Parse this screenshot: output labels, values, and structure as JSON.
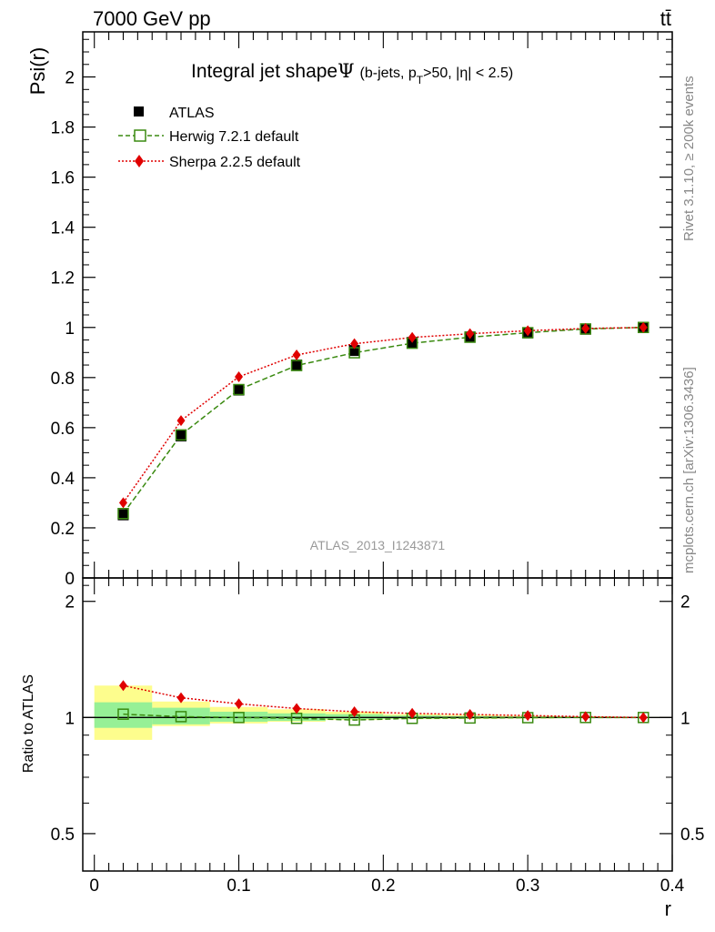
{
  "header": {
    "energy_label": "7000 GeV pp",
    "process_label": "tt̄"
  },
  "side_labels": {
    "rivet": "Rivet 3.1.10, ≥ 200k events",
    "mcplots": "mcplots.cern.ch [arXiv:1306.3436]"
  },
  "chart_data": {
    "type": "scatter",
    "title_main": "Integral jet shape",
    "title_symbol": "Ψ",
    "title_cut_a": "(b-jets, p",
    "title_cut_sub": "T",
    "title_cut_b": ">50, |η| < 2.5)",
    "watermark": "ATLAS_2013_I1243871",
    "upper": {
      "ylabel": "Psi(r)",
      "ylim": [
        0,
        2.18
      ],
      "yticks": [
        0,
        0.2,
        0.4,
        0.6,
        0.8,
        1,
        1.2,
        1.4,
        1.6,
        1.8,
        2
      ],
      "ytick_labels": [
        "0",
        "0.2",
        "0.4",
        "0.6",
        "0.8",
        "1",
        "1.2",
        "1.4",
        "1.6",
        "1.8",
        "2"
      ]
    },
    "lower": {
      "ylabel": "Ratio to ATLAS",
      "ylim": [
        0.4,
        2.3
      ],
      "yticks": [
        0.5,
        1,
        2
      ],
      "ytick_labels": [
        "0.5",
        "1",
        "2"
      ],
      "reference": 1.0,
      "band_edges": [
        0.0,
        0.04,
        0.08,
        0.12,
        0.16,
        0.2,
        0.24,
        0.28,
        0.32,
        0.36,
        0.4
      ],
      "band_green_lo": [
        0.94,
        0.96,
        0.975,
        0.98,
        0.99,
        0.993,
        0.995,
        0.997,
        0.999,
        0.999
      ],
      "band_green_hi": [
        1.095,
        1.06,
        1.035,
        1.025,
        1.02,
        1.012,
        1.008,
        1.005,
        1.003,
        1.002
      ],
      "band_yellow_lo": [
        0.875,
        0.95,
        0.965,
        0.975,
        0.985,
        0.99,
        0.992,
        0.994,
        0.997,
        0.999
      ],
      "band_yellow_hi": [
        1.21,
        1.1,
        1.065,
        1.05,
        1.035,
        1.02,
        1.015,
        1.01,
        1.006,
        1.003
      ]
    },
    "xlabel": "r",
    "xlim": [
      -0.008,
      0.4
    ],
    "xticks": [
      0,
      0.1,
      0.2,
      0.3,
      0.4
    ],
    "xtick_labels": [
      "0",
      "0.1",
      "0.2",
      "0.3",
      "0.4"
    ],
    "x": [
      0.02,
      0.06,
      0.1,
      0.14,
      0.18,
      0.22,
      0.26,
      0.3,
      0.34,
      0.38
    ],
    "series": [
      {
        "name": "ATLAS",
        "color": "#000000",
        "values": [
          0.252,
          0.567,
          0.75,
          0.85,
          0.908,
          0.94,
          0.962,
          0.978,
          0.993,
          1.0
        ],
        "ratio": [
          1,
          1,
          1,
          1,
          1,
          1,
          1,
          1,
          1,
          1
        ]
      },
      {
        "name": "Herwig 7.2.1 default",
        "color": "#3a8a10",
        "values": [
          0.257,
          0.571,
          0.752,
          0.848,
          0.899,
          0.937,
          0.961,
          0.979,
          0.994,
          1.0
        ],
        "ratio": [
          1.02,
          1.005,
          1.0,
          0.995,
          0.985,
          0.995,
          0.997,
          0.999,
          1.0,
          1.0
        ]
      },
      {
        "name": "Sherpa 2.2.5 default",
        "color": "#e00000",
        "values": [
          0.3,
          0.628,
          0.803,
          0.89,
          0.935,
          0.96,
          0.975,
          0.987,
          0.996,
          1.0
        ],
        "ratio": [
          1.21,
          1.125,
          1.085,
          1.055,
          1.035,
          1.025,
          1.018,
          1.012,
          1.005,
          1.0
        ]
      }
    ]
  }
}
